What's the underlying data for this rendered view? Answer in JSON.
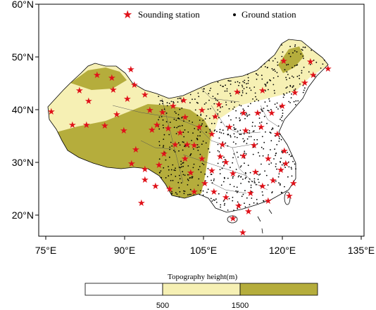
{
  "map": {
    "y_ticks": [
      {
        "label": "60°N",
        "lat": 60
      },
      {
        "label": "50°N",
        "lat": 50
      },
      {
        "label": "40°N",
        "lat": 40
      },
      {
        "label": "30°N",
        "lat": 30
      },
      {
        "label": "20°N",
        "lat": 20
      }
    ],
    "x_ticks": [
      {
        "label": "75°E",
        "lon": 75
      },
      {
        "label": "90°E",
        "lon": 90
      },
      {
        "label": "105°E",
        "lon": 105
      },
      {
        "label": "120°E",
        "lon": 120
      },
      {
        "label": "135°E",
        "lon": 135
      }
    ],
    "legend": {
      "sounding_label": "Sounding station",
      "ground_label": "Ground station",
      "placement": "top"
    },
    "colors": {
      "low": "#ffffff",
      "mid": "#f6f0b4",
      "high": "#b5ad3c",
      "sounding_marker": "#e0121a",
      "ground_marker": "#000000"
    }
  },
  "colorbar": {
    "title": "Topography height(m)",
    "ticks": [
      "500",
      "1500"
    ]
  }
}
